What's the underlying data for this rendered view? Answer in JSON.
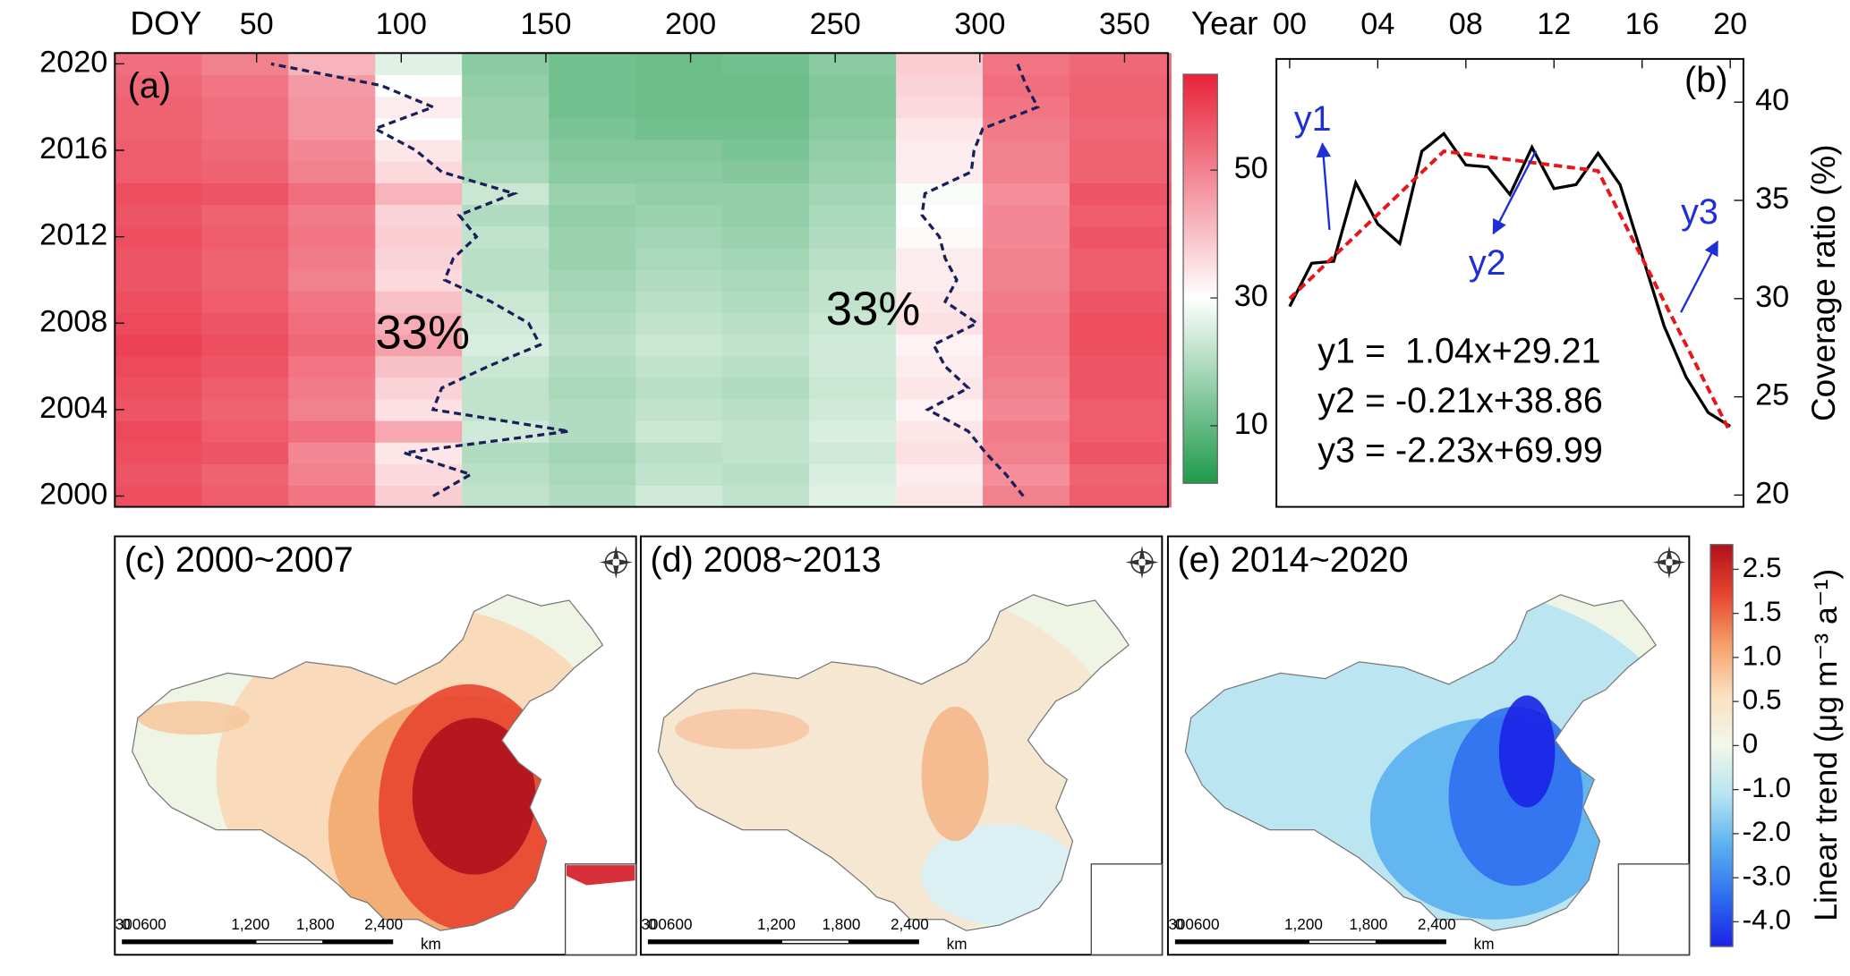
{
  "chart_data": [
    {
      "type": "heatmap",
      "panel_label": "(a)",
      "x_label": "DOY",
      "xlim": [
        1,
        365
      ],
      "xticks": [
        50,
        100,
        150,
        200,
        250,
        300,
        350
      ],
      "ylim": [
        1999.5,
        2020.5
      ],
      "yticks": [
        2000,
        2004,
        2008,
        2012,
        2016,
        2020
      ],
      "years": [
        2000,
        2001,
        2002,
        2003,
        2004,
        2005,
        2006,
        2007,
        2008,
        2009,
        2010,
        2011,
        2012,
        2013,
        2014,
        2015,
        2016,
        2017,
        2018,
        2019,
        2020
      ],
      "doy_bins": [
        1,
        31,
        61,
        91,
        121,
        151,
        181,
        211,
        241,
        271,
        301,
        331,
        366
      ],
      "values": [
        [
          58,
          56,
          52,
          38,
          22,
          20,
          24,
          22,
          26,
          34,
          50,
          56
        ],
        [
          57,
          55,
          50,
          36,
          21,
          19,
          22,
          21,
          25,
          33,
          48,
          55
        ],
        [
          58,
          57,
          49,
          34,
          20,
          18,
          21,
          22,
          24,
          35,
          50,
          57
        ],
        [
          59,
          56,
          53,
          44,
          24,
          20,
          23,
          22,
          25,
          34,
          51,
          56
        ],
        [
          57,
          55,
          50,
          35,
          22,
          20,
          22,
          21,
          24,
          32,
          49,
          56
        ],
        [
          58,
          56,
          51,
          37,
          22,
          19,
          21,
          20,
          23,
          34,
          50,
          57
        ],
        [
          59,
          57,
          52,
          40,
          23,
          20,
          22,
          21,
          24,
          33,
          51,
          57
        ],
        [
          60,
          58,
          54,
          45,
          25,
          21,
          23,
          22,
          24,
          32,
          52,
          58
        ],
        [
          59,
          57,
          53,
          43,
          24,
          20,
          22,
          21,
          23,
          35,
          52,
          58
        ],
        [
          58,
          56,
          52,
          40,
          23,
          19,
          21,
          20,
          22,
          34,
          51,
          57
        ],
        [
          57,
          55,
          50,
          36,
          21,
          18,
          20,
          19,
          22,
          33,
          50,
          56
        ],
        [
          57,
          55,
          51,
          37,
          21,
          17,
          19,
          18,
          21,
          33,
          50,
          56
        ],
        [
          58,
          56,
          52,
          38,
          22,
          17,
          18,
          17,
          20,
          31,
          49,
          57
        ],
        [
          57,
          55,
          51,
          37,
          20,
          16,
          17,
          16,
          19,
          30,
          49,
          56
        ],
        [
          58,
          57,
          53,
          42,
          23,
          17,
          16,
          16,
          18,
          29,
          48,
          57
        ],
        [
          56,
          55,
          50,
          36,
          19,
          15,
          15,
          14,
          17,
          33,
          50,
          55
        ],
        [
          56,
          54,
          49,
          34,
          18,
          14,
          14,
          13,
          16,
          33,
          50,
          55
        ],
        [
          55,
          53,
          47,
          30,
          17,
          13,
          12,
          12,
          15,
          34,
          51,
          54
        ],
        [
          55,
          53,
          47,
          33,
          17,
          12,
          11,
          11,
          14,
          36,
          52,
          55
        ],
        [
          54,
          52,
          46,
          30,
          16,
          12,
          11,
          11,
          14,
          37,
          53,
          55
        ],
        [
          53,
          50,
          42,
          26,
          15,
          12,
          11,
          12,
          15,
          38,
          52,
          54
        ]
      ],
      "clim": [
        1,
        65
      ],
      "cticks": [
        10,
        30,
        50
      ],
      "cmap": [
        "#1e9a4a",
        "#ffffff",
        "#e8233a"
      ],
      "cmap_mid": 30,
      "left_boundary": [
        111,
        124,
        101,
        158,
        111,
        114,
        130,
        148,
        144,
        131,
        115,
        118,
        126,
        120,
        139,
        114,
        105,
        91,
        111,
        93,
        55
      ],
      "right_boundary": [
        315,
        309,
        302,
        296,
        282,
        296,
        288,
        284,
        299,
        288,
        292,
        288,
        286,
        280,
        281,
        297,
        298,
        301,
        320,
        316,
        313
      ],
      "boundary_color": "#1a1f5a",
      "boundary_labels": [
        "33%",
        "33%"
      ]
    },
    {
      "type": "line",
      "panel_label": "(b)",
      "x_label": "Year",
      "y_label": "Coverage ratio (%)",
      "x": [
        2000,
        2001,
        2002,
        2003,
        2004,
        2005,
        2006,
        2007,
        2008,
        2009,
        2010,
        2011,
        2012,
        2013,
        2014,
        2015,
        2016,
        2017,
        2018,
        2019,
        2020
      ],
      "xlim": [
        1999.4,
        2020.6
      ],
      "xticks": [
        {
          "value": 2000,
          "label": "00"
        },
        {
          "value": 2004,
          "label": "04"
        },
        {
          "value": 2008,
          "label": "08"
        },
        {
          "value": 2012,
          "label": "12"
        },
        {
          "value": 2016,
          "label": "16"
        },
        {
          "value": 2020,
          "label": "20"
        }
      ],
      "ylim": [
        19.4,
        42.2
      ],
      "yticks": [
        20,
        25,
        30,
        35,
        40
      ],
      "series": [
        {
          "color": "#000000",
          "values": [
            29.6,
            31.8,
            31.9,
            35.9,
            33.8,
            32.8,
            37.5,
            38.4,
            36.8,
            36.7,
            35.3,
            37.7,
            35.6,
            35.8,
            37.4,
            35.8,
            32.2,
            28.6,
            26.0,
            24.2,
            23.5
          ]
        }
      ],
      "fit": {
        "color": "#e8161b",
        "x": [
          2000,
          2007,
          2014,
          2020
        ],
        "values": [
          30.0,
          37.5,
          36.5,
          23.2
        ]
      },
      "segment_labels": [
        "y1",
        "y2",
        "y3"
      ],
      "annotation_color": "#1f2fd6",
      "equations": [
        "y1 =  1.04x+29.21",
        "y2 = -0.21x+38.86",
        "y3 = -2.23x+69.99"
      ]
    },
    {
      "type": "map",
      "panels": [
        {
          "label": "(c) 2000~2007"
        },
        {
          "label": "(d) 2008~2013"
        },
        {
          "label": "(e) 2014~2020"
        }
      ],
      "scale_bar_labels": [
        "0",
        "300600",
        "1,200",
        "1,800",
        "2,400",
        "km"
      ],
      "colorbar_label": "Linear trend (μg m⁻³ a⁻¹)",
      "cticks": [
        2.5,
        1.5,
        {
          "value": 1,
          "label": "1.0"
        },
        0.5,
        0,
        {
          "value": -1,
          "label": "-1.0"
        },
        {
          "value": -2,
          "label": "-2.0"
        },
        {
          "value": -3,
          "label": "-3.0"
        },
        {
          "value": -4,
          "label": "-4.0"
        }
      ],
      "colorbar_colors": [
        "#b0101c",
        "#e8452f",
        "#f5a06a",
        "#fbe0c0",
        "#f2f7ea",
        "#b5e4f2",
        "#5ab0f0",
        "#2f6ef0",
        "#1a23e6"
      ]
    }
  ]
}
